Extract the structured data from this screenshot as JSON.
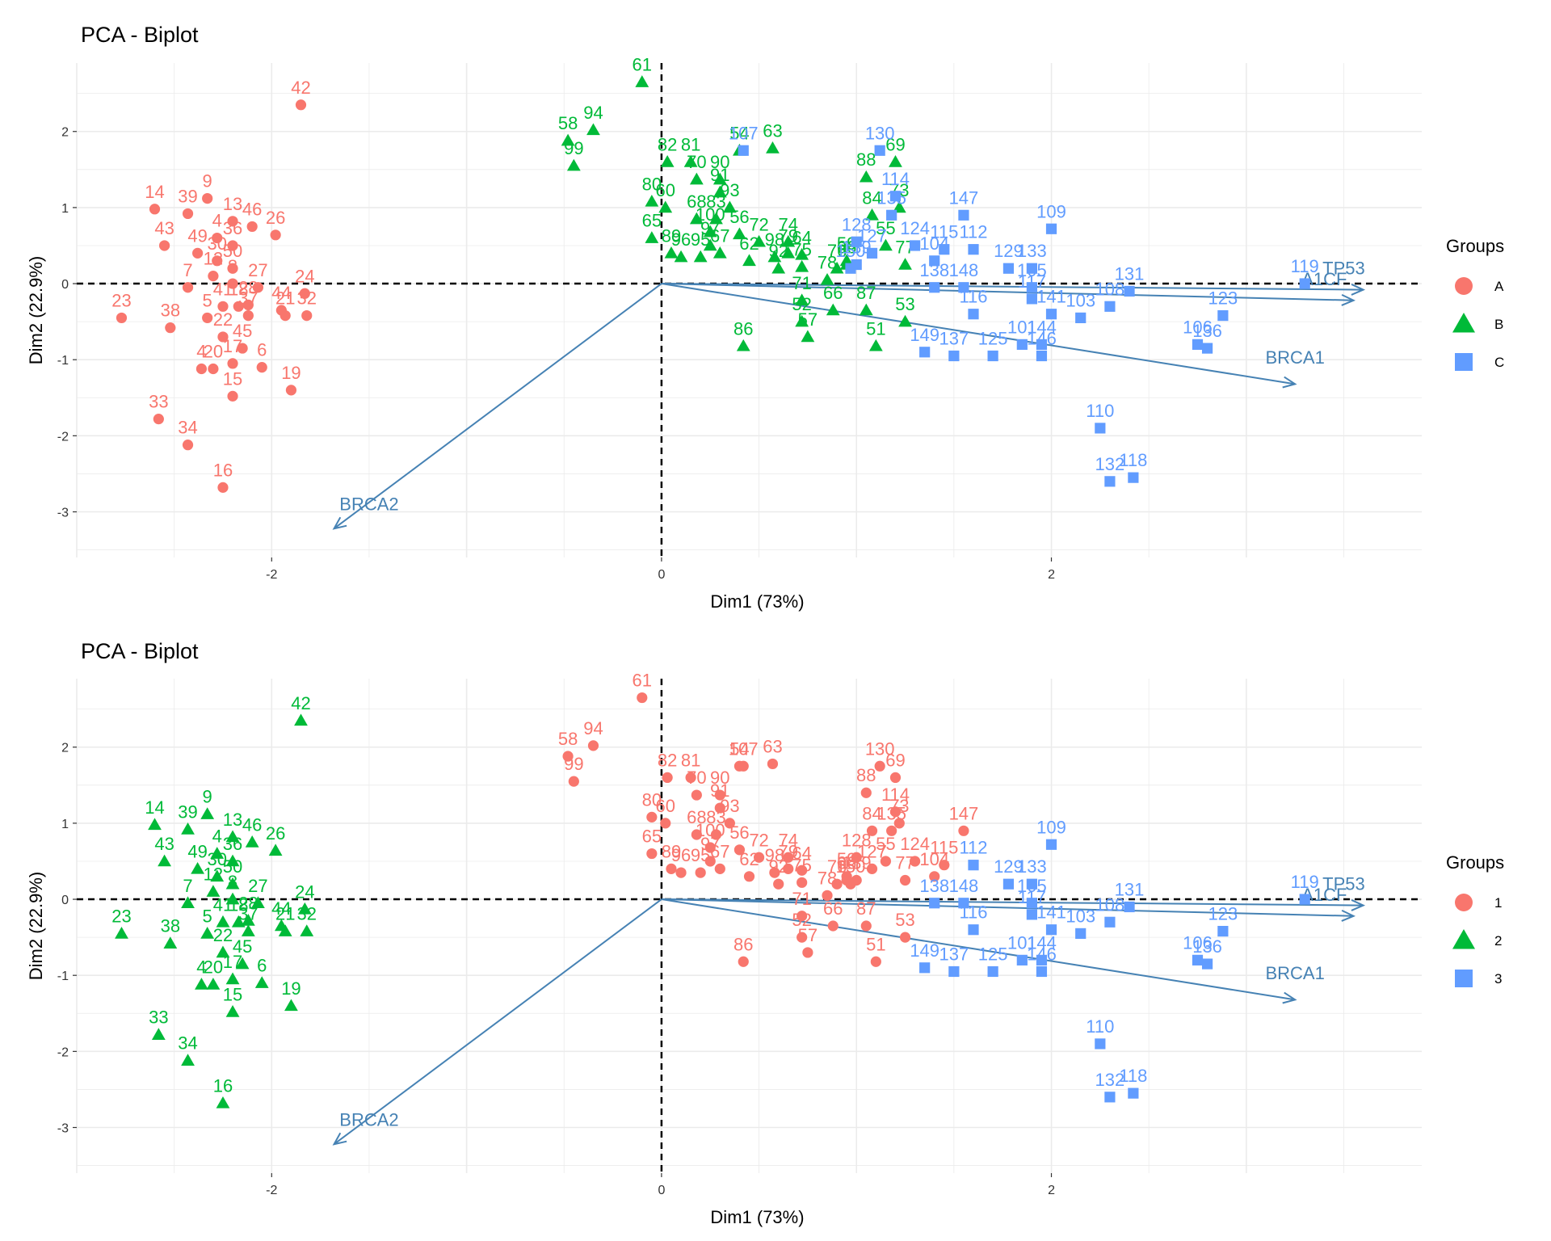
{
  "chart_data": [
    {
      "type": "scatter",
      "title": "PCA - Biplot",
      "xlabel": "Dim1 (73%)",
      "ylabel": "Dim2 (22.9%)",
      "xlim": [
        -3.0,
        3.9
      ],
      "ylim": [
        -3.6,
        2.9
      ],
      "xticks": [
        -2,
        0,
        2
      ],
      "yticks": [
        -3,
        -2,
        -1,
        0,
        1,
        2
      ],
      "grid": true,
      "legend": {
        "title": "Groups",
        "placement": "right",
        "labels": [
          "A",
          "B",
          "C"
        ]
      },
      "colors": [
        "#f8766d",
        "#00ba38",
        "#619cff"
      ],
      "group_by": "species",
      "arrows_color": "#4682b4"
    },
    {
      "type": "scatter",
      "title": "PCA - Biplot",
      "xlabel": "Dim1 (73%)",
      "ylabel": "Dim2 (22.9%)",
      "xlim": [
        -3.0,
        3.9
      ],
      "ylim": [
        -3.6,
        2.9
      ],
      "xticks": [
        -2,
        0,
        2
      ],
      "yticks": [
        -3,
        -2,
        -1,
        0,
        1,
        2
      ],
      "grid": true,
      "legend": {
        "title": "Groups",
        "placement": "right",
        "labels": [
          "1",
          "2",
          "3"
        ]
      },
      "colors": [
        "#f8766d",
        "#00ba38",
        "#619cff"
      ],
      "group_by": "cluster",
      "arrows_color": "#4682b4"
    }
  ],
  "points": [
    {
      "id": "42",
      "x": -1.85,
      "y": 2.35,
      "species": 0,
      "cluster": 1
    },
    {
      "id": "14",
      "x": -2.6,
      "y": 0.98,
      "species": 0,
      "cluster": 1
    },
    {
      "id": "39",
      "x": -2.43,
      "y": 0.92,
      "species": 0,
      "cluster": 1
    },
    {
      "id": "9",
      "x": -2.33,
      "y": 1.12,
      "species": 0,
      "cluster": 1
    },
    {
      "id": "13",
      "x": -2.2,
      "y": 0.82,
      "species": 0,
      "cluster": 1
    },
    {
      "id": "46",
      "x": -2.1,
      "y": 0.75,
      "species": 0,
      "cluster": 1
    },
    {
      "id": "26",
      "x": -1.98,
      "y": 0.64,
      "species": 0,
      "cluster": 1
    },
    {
      "id": "43",
      "x": -2.55,
      "y": 0.5,
      "species": 0,
      "cluster": 1
    },
    {
      "id": "4",
      "x": -2.28,
      "y": 0.6,
      "species": 0,
      "cluster": 1
    },
    {
      "id": "49",
      "x": -2.38,
      "y": 0.4,
      "species": 0,
      "cluster": 1
    },
    {
      "id": "36",
      "x": -2.2,
      "y": 0.5,
      "species": 0,
      "cluster": 1
    },
    {
      "id": "30",
      "x": -2.28,
      "y": 0.3,
      "species": 0,
      "cluster": 1
    },
    {
      "id": "7",
      "x": -2.43,
      "y": -0.05,
      "species": 0,
      "cluster": 1
    },
    {
      "id": "12",
      "x": -2.3,
      "y": 0.1,
      "species": 0,
      "cluster": 1
    },
    {
      "id": "50",
      "x": -2.2,
      "y": 0.2,
      "species": 0,
      "cluster": 1
    },
    {
      "id": "8",
      "x": -2.2,
      "y": 0.0,
      "species": 0,
      "cluster": 1
    },
    {
      "id": "27",
      "x": -2.07,
      "y": -0.05,
      "species": 0,
      "cluster": 1
    },
    {
      "id": "24",
      "x": -1.83,
      "y": -0.13,
      "species": 0,
      "cluster": 1
    },
    {
      "id": "23",
      "x": -2.77,
      "y": -0.45,
      "species": 0,
      "cluster": 1
    },
    {
      "id": "38",
      "x": -2.52,
      "y": -0.58,
      "species": 0,
      "cluster": 1
    },
    {
      "id": "5",
      "x": -2.33,
      "y": -0.45,
      "species": 0,
      "cluster": 1
    },
    {
      "id": "41",
      "x": -2.25,
      "y": -0.3,
      "species": 0,
      "cluster": 1
    },
    {
      "id": "18",
      "x": -2.17,
      "y": -0.3,
      "species": 0,
      "cluster": 1
    },
    {
      "id": "28",
      "x": -2.12,
      "y": -0.28,
      "species": 0,
      "cluster": 1
    },
    {
      "id": "37",
      "x": -2.12,
      "y": -0.42,
      "species": 0,
      "cluster": 1
    },
    {
      "id": "44",
      "x": -1.95,
      "y": -0.35,
      "species": 0,
      "cluster": 1
    },
    {
      "id": "21",
      "x": -1.93,
      "y": -0.42,
      "species": 0,
      "cluster": 1
    },
    {
      "id": "32",
      "x": -1.82,
      "y": -0.42,
      "species": 0,
      "cluster": 1
    },
    {
      "id": "22",
      "x": -2.25,
      "y": -0.7,
      "species": 0,
      "cluster": 1
    },
    {
      "id": "42b",
      "label": "4",
      "x": -2.36,
      "y": -1.12,
      "species": 0,
      "cluster": 1
    },
    {
      "id": "20",
      "x": -2.3,
      "y": -1.12,
      "species": 0,
      "cluster": 1
    },
    {
      "id": "45",
      "x": -2.15,
      "y": -0.85,
      "species": 0,
      "cluster": 1
    },
    {
      "id": "17",
      "x": -2.2,
      "y": -1.05,
      "species": 0,
      "cluster": 1
    },
    {
      "id": "6",
      "x": -2.05,
      "y": -1.1,
      "species": 0,
      "cluster": 1
    },
    {
      "id": "19",
      "x": -1.9,
      "y": -1.4,
      "species": 0,
      "cluster": 1
    },
    {
      "id": "15",
      "x": -2.2,
      "y": -1.48,
      "species": 0,
      "cluster": 1
    },
    {
      "id": "33",
      "x": -2.58,
      "y": -1.78,
      "species": 0,
      "cluster": 1
    },
    {
      "id": "34",
      "x": -2.43,
      "y": -2.12,
      "species": 0,
      "cluster": 1
    },
    {
      "id": "16",
      "x": -2.25,
      "y": -2.68,
      "species": 0,
      "cluster": 1
    },
    {
      "id": "61",
      "x": -0.1,
      "y": 2.65,
      "species": 1,
      "cluster": 0
    },
    {
      "id": "94",
      "x": -0.35,
      "y": 2.02,
      "species": 1,
      "cluster": 0
    },
    {
      "id": "58",
      "x": -0.48,
      "y": 1.88,
      "species": 1,
      "cluster": 0
    },
    {
      "id": "99",
      "x": -0.45,
      "y": 1.55,
      "species": 1,
      "cluster": 0
    },
    {
      "id": "54",
      "x": 0.4,
      "y": 1.75,
      "species": 1,
      "cluster": 0
    },
    {
      "id": "63",
      "x": 0.57,
      "y": 1.78,
      "species": 1,
      "cluster": 0
    },
    {
      "id": "82",
      "x": 0.03,
      "y": 1.6,
      "species": 1,
      "cluster": 0
    },
    {
      "id": "81",
      "x": 0.15,
      "y": 1.6,
      "species": 1,
      "cluster": 0
    },
    {
      "id": "70",
      "x": 0.18,
      "y": 1.37,
      "species": 1,
      "cluster": 0
    },
    {
      "id": "90",
      "x": 0.3,
      "y": 1.37,
      "species": 1,
      "cluster": 0
    },
    {
      "id": "91",
      "x": 0.3,
      "y": 1.2,
      "species": 1,
      "cluster": 0
    },
    {
      "id": "93",
      "x": 0.35,
      "y": 1.0,
      "species": 1,
      "cluster": 0
    },
    {
      "id": "80",
      "x": -0.05,
      "y": 1.08,
      "species": 1,
      "cluster": 0
    },
    {
      "id": "60",
      "x": 0.02,
      "y": 1.0,
      "species": 1,
      "cluster": 0
    },
    {
      "id": "68",
      "x": 0.18,
      "y": 0.85,
      "species": 1,
      "cluster": 0
    },
    {
      "id": "83",
      "x": 0.28,
      "y": 0.85,
      "species": 1,
      "cluster": 0
    },
    {
      "id": "100",
      "x": 0.25,
      "y": 0.68,
      "species": 1,
      "cluster": 0
    },
    {
      "id": "56",
      "x": 0.4,
      "y": 0.65,
      "species": 1,
      "cluster": 0
    },
    {
      "id": "65",
      "x": -0.05,
      "y": 0.6,
      "species": 1,
      "cluster": 0
    },
    {
      "id": "96",
      "x": 0.1,
      "y": 0.35,
      "species": 1,
      "cluster": 0
    },
    {
      "id": "89",
      "x": 0.05,
      "y": 0.4,
      "species": 1,
      "cluster": 0
    },
    {
      "id": "95",
      "x": 0.2,
      "y": 0.35,
      "species": 1,
      "cluster": 0
    },
    {
      "id": "97",
      "x": 0.25,
      "y": 0.5,
      "species": 1,
      "cluster": 0
    },
    {
      "id": "67",
      "x": 0.3,
      "y": 0.4,
      "species": 1,
      "cluster": 0
    },
    {
      "id": "72",
      "x": 0.5,
      "y": 0.55,
      "species": 1,
      "cluster": 0
    },
    {
      "id": "74",
      "x": 0.65,
      "y": 0.55,
      "species": 1,
      "cluster": 0
    },
    {
      "id": "62",
      "x": 0.45,
      "y": 0.3,
      "species": 1,
      "cluster": 0
    },
    {
      "id": "98",
      "x": 0.58,
      "y": 0.35,
      "species": 1,
      "cluster": 0
    },
    {
      "id": "79",
      "x": 0.65,
      "y": 0.4,
      "species": 1,
      "cluster": 0
    },
    {
      "id": "64",
      "x": 0.72,
      "y": 0.38,
      "species": 1,
      "cluster": 0
    },
    {
      "id": "92",
      "x": 0.6,
      "y": 0.2,
      "species": 1,
      "cluster": 0
    },
    {
      "id": "75",
      "x": 0.72,
      "y": 0.22,
      "species": 1,
      "cluster": 0
    },
    {
      "id": "88",
      "x": 1.05,
      "y": 1.4,
      "species": 1,
      "cluster": 0
    },
    {
      "id": "69",
      "x": 1.2,
      "y": 1.6,
      "species": 1,
      "cluster": 0
    },
    {
      "id": "73",
      "x": 1.22,
      "y": 1.0,
      "species": 1,
      "cluster": 0
    },
    {
      "id": "84",
      "x": 1.08,
      "y": 0.9,
      "species": 1,
      "cluster": 0
    },
    {
      "id": "55",
      "x": 1.15,
      "y": 0.5,
      "species": 1,
      "cluster": 0
    },
    {
      "id": "59",
      "x": 0.95,
      "y": 0.3,
      "species": 1,
      "cluster": 0
    },
    {
      "id": "66",
      "x": 0.95,
      "y": 0.25,
      "species": 1,
      "cluster": 0
    },
    {
      "id": "76",
      "x": 0.9,
      "y": 0.2,
      "species": 1,
      "cluster": 0
    },
    {
      "id": "77",
      "x": 1.25,
      "y": 0.25,
      "species": 1,
      "cluster": 0
    },
    {
      "id": "78",
      "x": 0.85,
      "y": 0.05,
      "species": 1,
      "cluster": 0
    },
    {
      "id": "71",
      "x": 0.72,
      "y": -0.22,
      "species": 1,
      "cluster": 0
    },
    {
      "id": "86b",
      "label": "66",
      "x": 0.88,
      "y": -0.35,
      "species": 1,
      "cluster": 0
    },
    {
      "id": "87",
      "x": 1.05,
      "y": -0.35,
      "species": 1,
      "cluster": 0
    },
    {
      "id": "52",
      "x": 0.72,
      "y": -0.5,
      "species": 1,
      "cluster": 0
    },
    {
      "id": "57",
      "x": 0.75,
      "y": -0.7,
      "species": 1,
      "cluster": 0
    },
    {
      "id": "53",
      "x": 1.25,
      "y": -0.5,
      "species": 1,
      "cluster": 0
    },
    {
      "id": "51",
      "x": 1.1,
      "y": -0.82,
      "species": 1,
      "cluster": 0
    },
    {
      "id": "86",
      "x": 0.42,
      "y": -0.82,
      "species": 1,
      "cluster": 0
    },
    {
      "id": "130",
      "x": 1.12,
      "y": 1.75,
      "species": 2,
      "cluster": 0
    },
    {
      "id": "107",
      "x": 0.42,
      "y": 1.75,
      "species": 2,
      "cluster": 0
    },
    {
      "id": "114",
      "x": 1.2,
      "y": 1.15,
      "species": 2,
      "cluster": 0
    },
    {
      "id": "147",
      "x": 1.55,
      "y": 0.9,
      "species": 2,
      "cluster": 0
    },
    {
      "id": "135",
      "x": 1.18,
      "y": 0.9,
      "species": 2,
      "cluster": 0
    },
    {
      "id": "128",
      "x": 1.0,
      "y": 0.55,
      "species": 2,
      "cluster": 0
    },
    {
      "id": "127",
      "x": 1.08,
      "y": 0.4,
      "species": 2,
      "cluster": 0
    },
    {
      "id": "124",
      "x": 1.3,
      "y": 0.5,
      "species": 2,
      "cluster": 0
    },
    {
      "id": "115",
      "x": 1.45,
      "y": 0.45,
      "species": 2,
      "cluster": 0
    },
    {
      "id": "112",
      "x": 1.6,
      "y": 0.45,
      "species": 2,
      "cluster": 2
    },
    {
      "id": "104",
      "x": 1.4,
      "y": 0.3,
      "species": 2,
      "cluster": 0
    },
    {
      "id": "150",
      "x": 0.97,
      "y": 0.2,
      "species": 2,
      "cluster": 0
    },
    {
      "id": "139",
      "x": 1.0,
      "y": 0.25,
      "species": 2,
      "cluster": 0
    },
    {
      "id": "109",
      "x": 2.0,
      "y": 0.72,
      "species": 2,
      "cluster": 2
    },
    {
      "id": "129",
      "x": 1.78,
      "y": 0.2,
      "species": 2,
      "cluster": 2
    },
    {
      "id": "133",
      "x": 1.9,
      "y": 0.2,
      "species": 2,
      "cluster": 2
    },
    {
      "id": "138",
      "x": 1.4,
      "y": -0.05,
      "species": 2,
      "cluster": 2
    },
    {
      "id": "148",
      "x": 1.55,
      "y": -0.05,
      "species": 2,
      "cluster": 2
    },
    {
      "id": "105",
      "x": 1.9,
      "y": -0.05,
      "species": 2,
      "cluster": 2
    },
    {
      "id": "117",
      "x": 1.9,
      "y": -0.2,
      "species": 2,
      "cluster": 2
    },
    {
      "id": "116",
      "x": 1.6,
      "y": -0.4,
      "species": 2,
      "cluster": 2
    },
    {
      "id": "141",
      "x": 2.0,
      "y": -0.4,
      "species": 2,
      "cluster": 2
    },
    {
      "id": "103",
      "x": 2.15,
      "y": -0.45,
      "species": 2,
      "cluster": 2
    },
    {
      "id": "108",
      "x": 2.3,
      "y": -0.3,
      "species": 2,
      "cluster": 2
    },
    {
      "id": "131",
      "x": 2.4,
      "y": -0.1,
      "species": 2,
      "cluster": 2
    },
    {
      "id": "123",
      "x": 2.88,
      "y": -0.42,
      "species": 2,
      "cluster": 2
    },
    {
      "id": "119",
      "x": 3.3,
      "y": 0.0,
      "species": 2,
      "cluster": 2
    },
    {
      "id": "106",
      "x": 2.75,
      "y": -0.8,
      "species": 2,
      "cluster": 2
    },
    {
      "id": "136",
      "x": 2.8,
      "y": -0.85,
      "species": 2,
      "cluster": 2
    },
    {
      "id": "149",
      "x": 1.35,
      "y": -0.9,
      "species": 2,
      "cluster": 2
    },
    {
      "id": "137",
      "x": 1.5,
      "y": -0.95,
      "species": 2,
      "cluster": 2
    },
    {
      "id": "125",
      "x": 1.7,
      "y": -0.95,
      "species": 2,
      "cluster": 2
    },
    {
      "id": "101",
      "x": 1.85,
      "y": -0.8,
      "species": 2,
      "cluster": 2
    },
    {
      "id": "144",
      "x": 1.95,
      "y": -0.8,
      "species": 2,
      "cluster": 2
    },
    {
      "id": "146",
      "x": 1.95,
      "y": -0.95,
      "species": 2,
      "cluster": 2
    },
    {
      "id": "110",
      "x": 2.25,
      "y": -1.9,
      "species": 2,
      "cluster": 2
    },
    {
      "id": "132",
      "x": 2.3,
      "y": -2.6,
      "species": 2,
      "cluster": 2
    },
    {
      "id": "118",
      "x": 2.42,
      "y": -2.55,
      "species": 2,
      "cluster": 2
    }
  ],
  "arrows": [
    {
      "name": "TP53",
      "x": 3.6,
      "y": -0.08
    },
    {
      "name": "A1CF",
      "x": 3.55,
      "y": -0.22
    },
    {
      "name": "BRCA1",
      "x": 3.25,
      "y": -1.32
    },
    {
      "name": "BRCA2",
      "x": -1.68,
      "y": -3.22
    }
  ],
  "arrow_labels": [
    {
      "name": "TP53",
      "x": 3.5,
      "y": 0.12
    },
    {
      "name": "A1CF",
      "x": 3.4,
      "y": -0.02
    },
    {
      "name": "BRCA1",
      "x": 3.25,
      "y": -1.05
    },
    {
      "name": "BRCA2",
      "x": -1.5,
      "y": -2.98
    }
  ]
}
